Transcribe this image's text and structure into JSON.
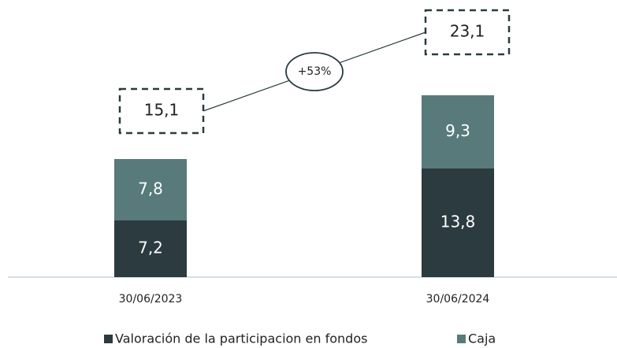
{
  "chart_data": {
    "type": "stacked_bar",
    "categories": [
      "30/06/2023",
      "30/06/2024"
    ],
    "series": [
      {
        "name": "Valoración de la participacion en fondos",
        "color": "#2b3b3f",
        "values": [
          7.2,
          13.8
        ],
        "value_labels": [
          "7,2",
          "13,8"
        ]
      },
      {
        "name": "Caja",
        "color": "#587a7a",
        "values": [
          7.8,
          9.3
        ],
        "value_labels": [
          "7,8",
          "9,3"
        ]
      }
    ],
    "totals": {
      "values": [
        15.1,
        23.1
      ],
      "value_labels": [
        "15,1",
        "23,1"
      ]
    },
    "annotation": "+53%"
  }
}
